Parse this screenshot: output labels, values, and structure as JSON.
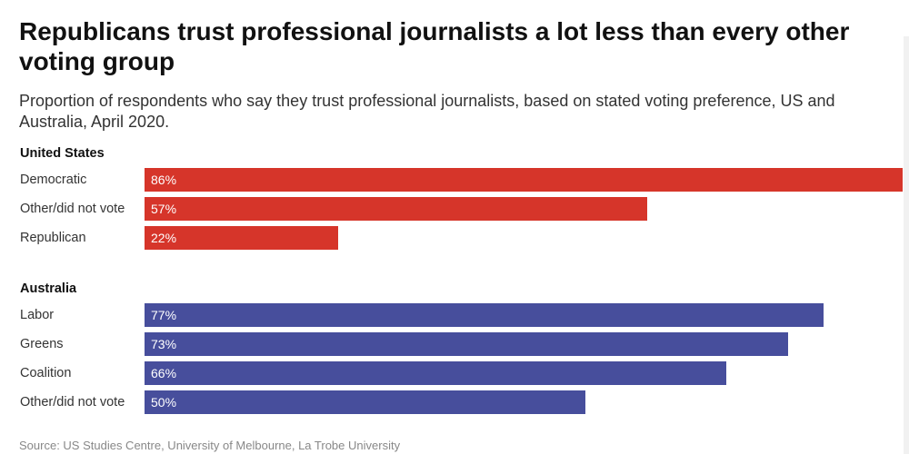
{
  "title": "Republicans trust professional journalists a lot less than every other voting group",
  "subtitle": "Proportion of respondents who say they trust professional journalists, based on stated voting preference, US and Australia, April 2020.",
  "source": "Source: US Studies Centre, University of Melbourne, La Trobe University",
  "colors": {
    "us": "#d6352a",
    "australia": "#474e9c"
  },
  "chart_data": {
    "type": "bar",
    "orientation": "horizontal",
    "title": "Republicans trust professional journalists a lot less than every other voting group",
    "xlim": [
      0,
      86
    ],
    "value_suffix": "%",
    "groups": [
      {
        "name": "United States",
        "color": "#d6352a",
        "categories": [
          "Democratic",
          "Other/did not vote",
          "Republican"
        ],
        "values": [
          86,
          57,
          22
        ],
        "labels": [
          "86%",
          "57%",
          "22%"
        ]
      },
      {
        "name": "Australia",
        "color": "#474e9c",
        "categories": [
          "Labor",
          "Greens",
          "Coalition",
          "Other/did not vote"
        ],
        "values": [
          77,
          73,
          66,
          50
        ],
        "labels": [
          "77%",
          "73%",
          "66%",
          "50%"
        ]
      }
    ]
  }
}
